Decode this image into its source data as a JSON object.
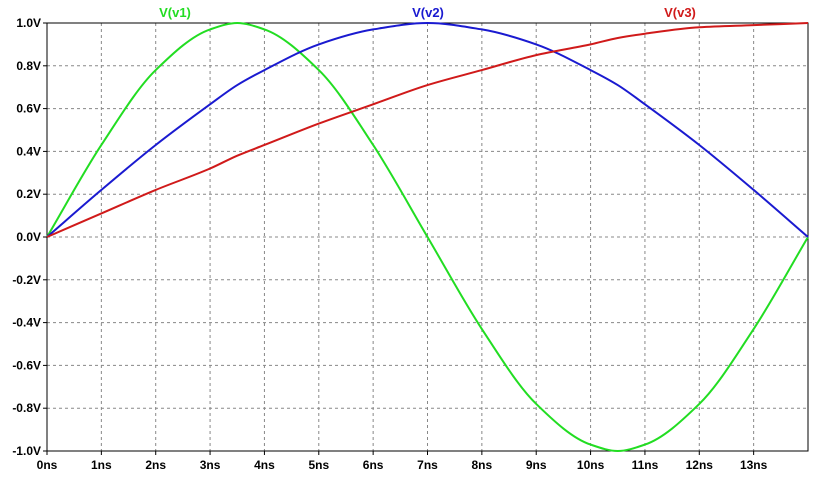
{
  "chart_data": {
    "type": "line",
    "title": "",
    "xlabel": "",
    "ylabel": "",
    "xlim": [
      0,
      14
    ],
    "ylim": [
      -1.0,
      1.0
    ],
    "grid": true,
    "x_ticks": [
      0,
      1,
      2,
      3,
      4,
      5,
      6,
      7,
      8,
      9,
      10,
      11,
      12,
      13
    ],
    "x_tick_labels": [
      "0ns",
      "1ns",
      "2ns",
      "3ns",
      "4ns",
      "5ns",
      "6ns",
      "7ns",
      "8ns",
      "9ns",
      "10ns",
      "11ns",
      "12ns",
      "13ns"
    ],
    "y_ticks": [
      1.0,
      0.8,
      0.6,
      0.4,
      0.2,
      0.0,
      -0.2,
      -0.4,
      -0.6,
      -0.8,
      -1.0
    ],
    "y_tick_labels": [
      "1.0V",
      "0.8V",
      "0.6V",
      "0.4V",
      "0.2V",
      "0.0V",
      "-0.2V",
      "-0.4V",
      "-0.6V",
      "-0.8V",
      "-1.0V"
    ],
    "x": [
      0,
      1,
      2,
      3,
      3.5,
      4,
      5,
      6,
      7,
      8,
      9,
      10,
      10.5,
      11,
      12,
      13,
      14
    ],
    "series": [
      {
        "name": "V(v1)",
        "color": "#22dd22",
        "values": [
          0,
          0.43,
          0.78,
          0.97,
          1.0,
          0.97,
          0.78,
          0.43,
          0.0,
          -0.43,
          -0.78,
          -0.97,
          -1.0,
          -0.97,
          -0.78,
          -0.43,
          0.0
        ]
      },
      {
        "name": "V(v2)",
        "color": "#1a1ad0",
        "values": [
          0,
          0.22,
          0.43,
          0.62,
          0.71,
          0.78,
          0.9,
          0.97,
          1.0,
          0.97,
          0.9,
          0.78,
          0.71,
          0.62,
          0.43,
          0.22,
          0.0
        ]
      },
      {
        "name": "V(v3)",
        "color": "#d01a1a",
        "values": [
          0,
          0.11,
          0.22,
          0.32,
          0.38,
          0.43,
          0.53,
          0.62,
          0.71,
          0.78,
          0.85,
          0.9,
          0.93,
          0.95,
          0.98,
          0.99,
          1.0
        ]
      }
    ]
  }
}
